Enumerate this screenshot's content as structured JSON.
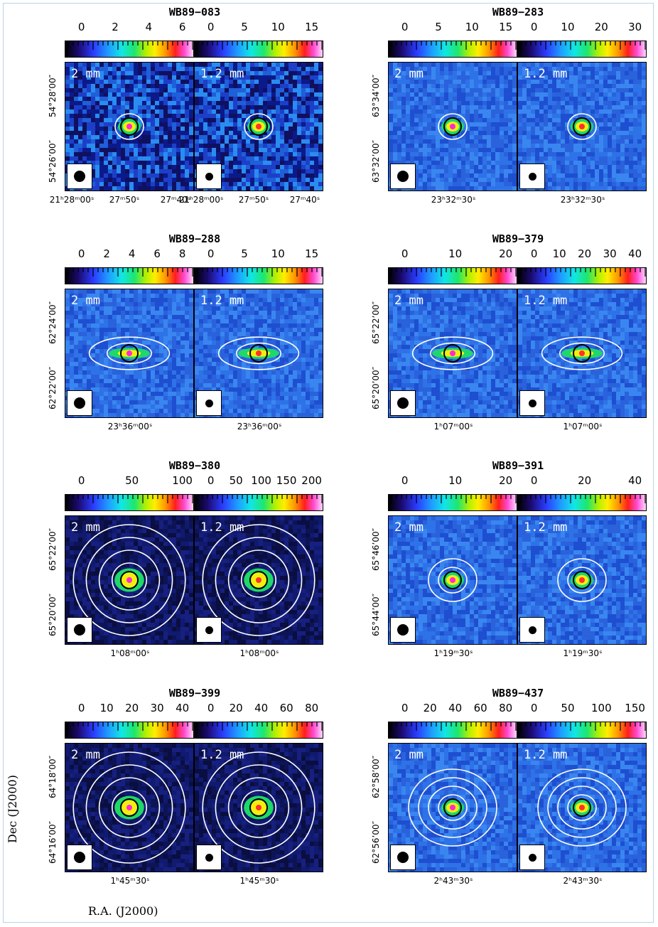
{
  "axis_titles": {
    "dec": "Dec (J2000)",
    "ra": "R.A. (J2000)"
  },
  "sources": [
    {
      "title": "WB89−083",
      "left_scale": [
        "0",
        "2",
        "4",
        "6"
      ],
      "right_scale": [
        "0",
        "5",
        "10",
        "15"
      ],
      "left_band": "2 mm",
      "right_band": "1.2 mm",
      "dec_labels": [
        "54°28’00″",
        "54°26’00″"
      ],
      "ra_labels": [
        "21ʰ28ᵐ00ˢ",
        "27ᵐ50ˢ",
        "27ᵐ40ˢ",
        "21ʰ28ᵐ00ˢ",
        "27ᵐ50ˢ",
        "27ᵐ40ˢ"
      ],
      "map_style": "noisy",
      "contours": 1
    },
    {
      "title": "WB89−283",
      "left_scale": [
        "0",
        "5",
        "10",
        "15"
      ],
      "right_scale": [
        "0",
        "10",
        "20",
        "30"
      ],
      "left_band": "2 mm",
      "right_band": "1.2 mm",
      "dec_labels": [
        "63°34’00″",
        "63°32’00″"
      ],
      "ra_labels": [
        "23ʰ32ᵐ30ˢ",
        "23ʰ32ᵐ30ˢ"
      ],
      "map_style": "smooth",
      "contours": 1
    },
    {
      "title": "WB89−288",
      "left_scale": [
        "0",
        "2",
        "4",
        "6",
        "8"
      ],
      "right_scale": [
        "0",
        "5",
        "10",
        "15"
      ],
      "left_band": "2 mm",
      "right_band": "1.2 mm",
      "dec_labels": [
        "62°24’00″",
        "62°22’00″"
      ],
      "ra_labels": [
        "23ʰ36ᵐ00ˢ",
        "23ʰ36ᵐ00ˢ"
      ],
      "map_style": "elongated",
      "contours": 2
    },
    {
      "title": "WB89−379",
      "left_scale": [
        "0",
        "10",
        "20"
      ],
      "right_scale": [
        "0",
        "10",
        "20",
        "30",
        "40"
      ],
      "left_band": "2 mm",
      "right_band": "1.2 mm",
      "dec_labels": [
        "65°22’00″",
        "65°20’00″"
      ],
      "ra_labels": [
        "1ʰ07ᵐ00ˢ",
        "1ʰ07ᵐ00ˢ"
      ],
      "map_style": "elongated",
      "contours": 2
    },
    {
      "title": "WB89−380",
      "left_scale": [
        "0",
        "50",
        "100"
      ],
      "right_scale": [
        "0",
        "50",
        "100",
        "150",
        "200"
      ],
      "left_band": "2 mm",
      "right_band": "1.2 mm",
      "dec_labels": [
        "65°22’00″",
        "65°20’00″"
      ],
      "ra_labels": [
        "1ʰ08ᵐ00ˢ",
        "1ʰ08ᵐ00ˢ"
      ],
      "map_style": "extended",
      "contours": 4
    },
    {
      "title": "WB89−391",
      "left_scale": [
        "0",
        "10",
        "20"
      ],
      "right_scale": [
        "0",
        "20",
        "40"
      ],
      "left_band": "2 mm",
      "right_band": "1.2 mm",
      "dec_labels": [
        "65°46’00″",
        "65°44’00″"
      ],
      "ra_labels": [
        "1ʰ19ᵐ30ˢ",
        "1ʰ19ᵐ30ˢ"
      ],
      "map_style": "smooth",
      "contours": 2
    },
    {
      "title": "WB89−399",
      "left_scale": [
        "0",
        "10",
        "20",
        "30",
        "40"
      ],
      "right_scale": [
        "0",
        "20",
        "40",
        "60",
        "80"
      ],
      "left_band": "2 mm",
      "right_band": "1.2 mm",
      "dec_labels": [
        "64°18’00″",
        "64°16’00″"
      ],
      "ra_labels": [
        "1ʰ45ᵐ30ˢ",
        "1ʰ45ᵐ30ˢ"
      ],
      "map_style": "extended",
      "contours": 4
    },
    {
      "title": "WB89−437",
      "left_scale": [
        "0",
        "20",
        "40",
        "60",
        "80"
      ],
      "right_scale": [
        "0",
        "50",
        "100",
        "150"
      ],
      "left_band": "2 mm",
      "right_band": "1.2 mm",
      "dec_labels": [
        "62°58’00″",
        "62°56’00″"
      ],
      "ra_labels": [
        "2ʰ43ᵐ30ˢ",
        "2ʰ43ᵐ30ˢ"
      ],
      "map_style": "smooth",
      "contours": 4
    }
  ]
}
